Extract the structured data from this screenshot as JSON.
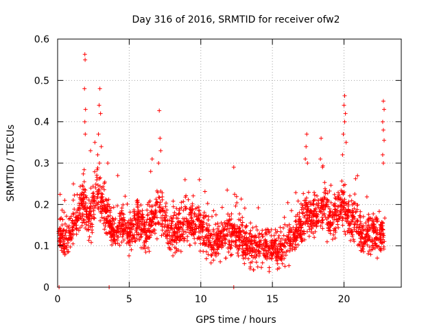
{
  "chart_data": {
    "type": "scatter",
    "title": "Day 316 of 2016, SRMTID for receiver ofw2",
    "xlabel": "GPS time / hours",
    "ylabel": "SRMTID / TECUs",
    "xlim": [
      0,
      24
    ],
    "ylim": [
      0,
      0.6
    ],
    "xticks": [
      0,
      5,
      10,
      15,
      20
    ],
    "yticks": [
      0,
      0.1,
      0.2,
      0.3,
      0.4,
      0.5,
      0.6
    ],
    "xtick_labels": [
      "0",
      "5",
      "10",
      "15",
      "20"
    ],
    "ytick_labels": [
      "0",
      "0.1",
      "0.2",
      "0.3",
      "0.4",
      "0.5",
      "0.6"
    ],
    "grid": true,
    "marker": "+",
    "color": "#ff0000",
    "trend": [
      [
        0.0,
        0.13
      ],
      [
        0.5,
        0.11
      ],
      [
        1.0,
        0.14
      ],
      [
        1.5,
        0.18
      ],
      [
        1.8,
        0.2
      ],
      [
        2.2,
        0.16
      ],
      [
        2.8,
        0.24
      ],
      [
        3.3,
        0.18
      ],
      [
        4.0,
        0.13
      ],
      [
        4.5,
        0.15
      ],
      [
        5.0,
        0.13
      ],
      [
        5.6,
        0.16
      ],
      [
        6.2,
        0.13
      ],
      [
        6.8,
        0.17
      ],
      [
        7.2,
        0.19
      ],
      [
        7.8,
        0.12
      ],
      [
        8.5,
        0.14
      ],
      [
        9.2,
        0.16
      ],
      [
        9.8,
        0.15
      ],
      [
        10.4,
        0.13
      ],
      [
        11.0,
        0.1
      ],
      [
        11.6,
        0.12
      ],
      [
        12.2,
        0.14
      ],
      [
        12.8,
        0.12
      ],
      [
        13.5,
        0.1
      ],
      [
        14.2,
        0.1
      ],
      [
        15.0,
        0.09
      ],
      [
        15.6,
        0.09
      ],
      [
        16.2,
        0.11
      ],
      [
        16.8,
        0.13
      ],
      [
        17.3,
        0.18
      ],
      [
        17.8,
        0.17
      ],
      [
        18.5,
        0.19
      ],
      [
        19.2,
        0.16
      ],
      [
        19.8,
        0.2
      ],
      [
        20.3,
        0.16
      ],
      [
        20.8,
        0.17
      ],
      [
        21.3,
        0.12
      ],
      [
        21.8,
        0.13
      ],
      [
        22.3,
        0.12
      ],
      [
        22.8,
        0.14
      ]
    ],
    "peaks": [
      [
        1.9,
        0.563
      ],
      [
        1.92,
        0.55
      ],
      [
        1.88,
        0.48
      ],
      [
        1.95,
        0.43
      ],
      [
        1.9,
        0.4
      ],
      [
        1.93,
        0.37
      ],
      [
        2.95,
        0.48
      ],
      [
        2.9,
        0.44
      ],
      [
        3.0,
        0.42
      ],
      [
        2.85,
        0.37
      ],
      [
        3.05,
        0.34
      ],
      [
        2.8,
        0.32
      ],
      [
        7.1,
        0.427
      ],
      [
        7.15,
        0.36
      ],
      [
        7.2,
        0.33
      ],
      [
        7.05,
        0.3
      ],
      [
        12.3,
        0.29
      ],
      [
        8.9,
        0.26
      ],
      [
        9.9,
        0.26
      ],
      [
        6.6,
        0.31
      ],
      [
        6.5,
        0.28
      ],
      [
        17.4,
        0.37
      ],
      [
        17.35,
        0.34
      ],
      [
        17.3,
        0.31
      ],
      [
        17.45,
        0.3
      ],
      [
        18.4,
        0.36
      ],
      [
        18.35,
        0.31
      ],
      [
        18.5,
        0.29
      ],
      [
        20.05,
        0.463
      ],
      [
        20.0,
        0.44
      ],
      [
        20.1,
        0.42
      ],
      [
        20.05,
        0.4
      ],
      [
        19.95,
        0.37
      ],
      [
        20.15,
        0.35
      ],
      [
        19.9,
        0.32
      ],
      [
        22.75,
        0.45
      ],
      [
        22.8,
        0.43
      ],
      [
        22.7,
        0.4
      ],
      [
        22.75,
        0.38
      ],
      [
        22.8,
        0.355
      ],
      [
        22.7,
        0.32
      ],
      [
        22.75,
        0.3
      ],
      [
        3.5,
        0.3
      ],
      [
        4.2,
        0.27
      ],
      [
        1.1,
        0.25
      ],
      [
        0.5,
        0.21
      ],
      [
        2.3,
        0.33
      ],
      [
        2.6,
        0.35
      ]
    ],
    "zeros": [
      0.1,
      3.6,
      12.3
    ]
  }
}
